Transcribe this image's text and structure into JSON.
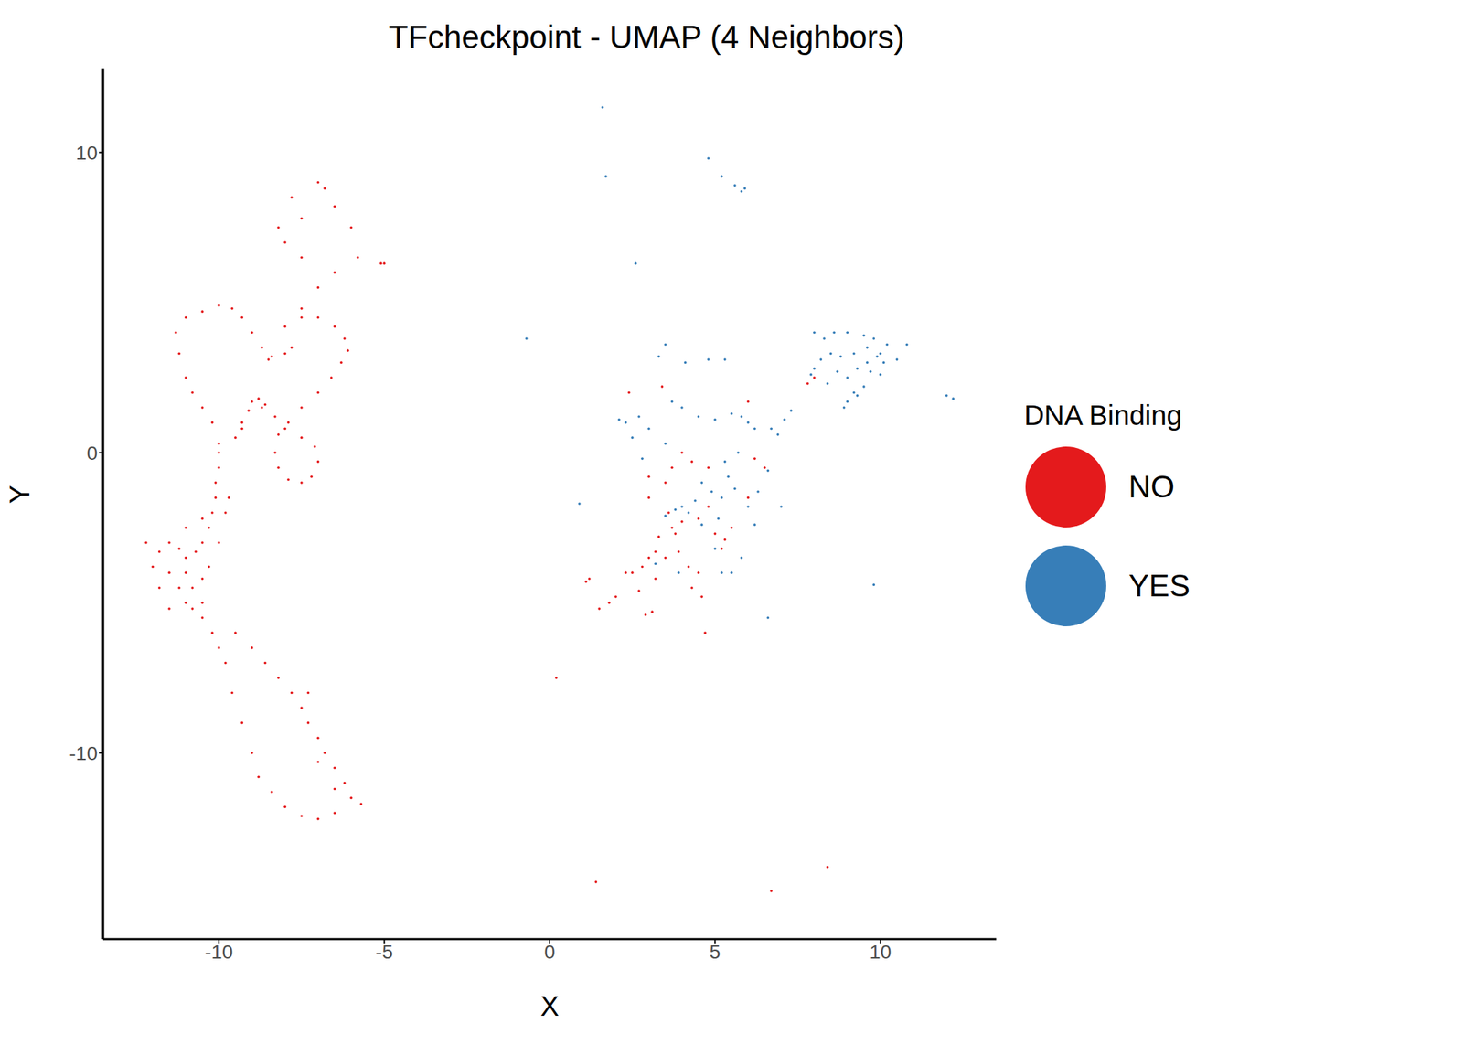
{
  "chart_data": {
    "type": "scatter",
    "title": "TFcheckpoint - UMAP (4 Neighbors)",
    "x_label": "X",
    "y_label": "Y",
    "legend_title": "DNA Binding",
    "legend": "right",
    "grid": false,
    "xlim": [
      -13.5,
      13.5
    ],
    "ylim": [
      -16.2,
      12.8
    ],
    "xticks": [
      -10,
      -5,
      0,
      5,
      10
    ],
    "yticks": [
      -10,
      0,
      10
    ],
    "marker": "circle",
    "series": [
      {
        "name": "NO",
        "color": "#E41A1C",
        "points": [
          [
            -7.5,
            4.8
          ],
          [
            -7.8,
            8.5
          ],
          [
            -7,
            9
          ],
          [
            -6.5,
            8.2
          ],
          [
            -6,
            7.5
          ],
          [
            -5.8,
            6.5
          ],
          [
            -5.1,
            6.3
          ],
          [
            -6.5,
            6
          ],
          [
            -7,
            5.5
          ],
          [
            -7.5,
            6.5
          ],
          [
            -8,
            7
          ],
          [
            -8.2,
            7.5
          ],
          [
            -7.5,
            7.8
          ],
          [
            -6.8,
            8.8
          ],
          [
            -10,
            4.9
          ],
          [
            -10.5,
            4.7
          ],
          [
            -11,
            4.5
          ],
          [
            -11.3,
            4
          ],
          [
            -11.2,
            3.3
          ],
          [
            -11,
            2.5
          ],
          [
            -10.8,
            2
          ],
          [
            -10.5,
            1.5
          ],
          [
            -10.2,
            1
          ],
          [
            -10,
            0.3
          ],
          [
            -9.6,
            4.8
          ],
          [
            -9.3,
            4.5
          ],
          [
            -9,
            4
          ],
          [
            -8.7,
            3.5
          ],
          [
            -8.4,
            3.2
          ],
          [
            -8,
            3.3
          ],
          [
            -7.8,
            3.5
          ],
          [
            -8,
            4.2
          ],
          [
            -7.5,
            4.5
          ],
          [
            -7,
            4.5
          ],
          [
            -6.5,
            4.2
          ],
          [
            -6.2,
            3.8
          ],
          [
            -6.1,
            3.4
          ],
          [
            -6.3,
            3
          ],
          [
            -6.6,
            2.5
          ],
          [
            -7,
            2
          ],
          [
            -7.5,
            1.5
          ],
          [
            -7.9,
            1
          ],
          [
            -8.2,
            0.6
          ],
          [
            -8.3,
            0
          ],
          [
            -8.2,
            -0.5
          ],
          [
            -7.9,
            -0.9
          ],
          [
            -7.5,
            -1
          ],
          [
            -7.2,
            -0.8
          ],
          [
            -7,
            -0.3
          ],
          [
            -7.1,
            0.2
          ],
          [
            -7.5,
            0.5
          ],
          [
            -8,
            0.8
          ],
          [
            -8.3,
            1.2
          ],
          [
            -8.6,
            1.6
          ],
          [
            -8.8,
            1.8
          ],
          [
            -9,
            1.7
          ],
          [
            -9.1,
            1.4
          ],
          [
            -9.3,
            1
          ],
          [
            -9.5,
            0.5
          ],
          [
            -8.7,
            1.5
          ],
          [
            -9.3,
            0.8
          ],
          [
            -10,
            0
          ],
          [
            -10,
            -0.5
          ],
          [
            -10.1,
            -1
          ],
          [
            -10.1,
            -1.5
          ],
          [
            -10.2,
            -2
          ],
          [
            -10.3,
            -2.5
          ],
          [
            -10.5,
            -3
          ],
          [
            -10.7,
            -3.3
          ],
          [
            -11,
            -3.5
          ],
          [
            -11.2,
            -3.2
          ],
          [
            -11.5,
            -3
          ],
          [
            -11.8,
            -3.3
          ],
          [
            -11.5,
            -4
          ],
          [
            -11.2,
            -4.5
          ],
          [
            -11,
            -5
          ],
          [
            -10.8,
            -5.2
          ],
          [
            -10.5,
            -5
          ],
          [
            -11.5,
            -5.2
          ],
          [
            -11.8,
            -4.5
          ],
          [
            -12,
            -3.8
          ],
          [
            -12.2,
            -3
          ],
          [
            -11,
            -2.5
          ],
          [
            -10.5,
            -2.2
          ],
          [
            -11,
            -4
          ],
          [
            -10.8,
            -4.5
          ],
          [
            -10.5,
            -4.2
          ],
          [
            -10.3,
            -3.8
          ],
          [
            -10,
            -3
          ],
          [
            -9.8,
            -2
          ],
          [
            -9.7,
            -1.5
          ],
          [
            -10.5,
            -5.5
          ],
          [
            -10.2,
            -6
          ],
          [
            -10,
            -6.5
          ],
          [
            -9.8,
            -7
          ],
          [
            -9.6,
            -8
          ],
          [
            -9.3,
            -9
          ],
          [
            -9,
            -10
          ],
          [
            -8.8,
            -10.8
          ],
          [
            -8.4,
            -11.3
          ],
          [
            -8,
            -11.8
          ],
          [
            -7.5,
            -12.1
          ],
          [
            -7,
            -12.2
          ],
          [
            -6.5,
            -12
          ],
          [
            -6,
            -11.5
          ],
          [
            -5.7,
            -11.7
          ],
          [
            -6.2,
            -11
          ],
          [
            -6.5,
            -10.5
          ],
          [
            -6.8,
            -10
          ],
          [
            -7,
            -9.5
          ],
          [
            -7.3,
            -9
          ],
          [
            -7.5,
            -8.5
          ],
          [
            -7.8,
            -8
          ],
          [
            -8.2,
            -7.5
          ],
          [
            -8.6,
            -7
          ],
          [
            -9,
            -6.5
          ],
          [
            -9.5,
            -6
          ],
          [
            -7.3,
            -8
          ],
          [
            -7,
            -10.3
          ],
          [
            -6.5,
            -11.2
          ],
          [
            -5,
            6.3
          ],
          [
            -8.5,
            3.1
          ],
          [
            1.5,
            -5.2
          ],
          [
            1.8,
            -5
          ],
          [
            2,
            -4.8
          ],
          [
            1.1,
            -4.3
          ],
          [
            1.2,
            -4.2
          ],
          [
            2.3,
            -4
          ],
          [
            2.5,
            -4
          ],
          [
            2.8,
            -3.8
          ],
          [
            3,
            -3.5
          ],
          [
            3.2,
            -3.3
          ],
          [
            3.5,
            -3.5
          ],
          [
            3.7,
            -2.5
          ],
          [
            3.8,
            -2.7
          ],
          [
            4,
            -2.3
          ],
          [
            3.6,
            -2
          ],
          [
            3.3,
            -2.8
          ],
          [
            4.2,
            -3.8
          ],
          [
            4.5,
            -4
          ],
          [
            4.3,
            -4.5
          ],
          [
            4.6,
            -4.8
          ],
          [
            3.9,
            -3.3
          ],
          [
            3,
            -1.5
          ],
          [
            3.5,
            -1
          ],
          [
            3.7,
            -0.5
          ],
          [
            4,
            0
          ],
          [
            4.3,
            -0.3
          ],
          [
            2.9,
            -5.4
          ],
          [
            3.1,
            -5.3
          ],
          [
            5,
            -2.7
          ],
          [
            5.3,
            -2.9
          ],
          [
            5.5,
            -2.5
          ],
          [
            6,
            -1.5
          ],
          [
            6.5,
            -0.5
          ],
          [
            2.4,
            2
          ],
          [
            3,
            -0.8
          ],
          [
            4.8,
            -1.8
          ],
          [
            4.5,
            -2.2
          ],
          [
            3.2,
            -4.2
          ],
          [
            2.7,
            -4.6
          ],
          [
            4.7,
            -6
          ],
          [
            5.2,
            -3.2
          ],
          [
            6,
            1.7
          ],
          [
            6.2,
            -0.2
          ],
          [
            8,
            2.5
          ],
          [
            7.8,
            2.3
          ],
          [
            1.4,
            -14.3
          ],
          [
            6.7,
            -14.6
          ],
          [
            8.4,
            -13.8
          ],
          [
            0.2,
            -7.5
          ],
          [
            4.8,
            -0.5
          ],
          [
            3.4,
            2.2
          ]
        ]
      },
      {
        "name": "YES",
        "color": "#377EB8",
        "points": [
          [
            8,
            4
          ],
          [
            8.3,
            3.8
          ],
          [
            8.6,
            4
          ],
          [
            9,
            4
          ],
          [
            9.5,
            3.9
          ],
          [
            9.8,
            3.8
          ],
          [
            10.2,
            3.6
          ],
          [
            10.8,
            3.6
          ],
          [
            9.6,
            3.5
          ],
          [
            9.2,
            3.3
          ],
          [
            8.8,
            3.2
          ],
          [
            8.5,
            3.3
          ],
          [
            8.2,
            3.1
          ],
          [
            8,
            2.8
          ],
          [
            8.7,
            2.7
          ],
          [
            9,
            2.5
          ],
          [
            9.3,
            2.8
          ],
          [
            9.6,
            3
          ],
          [
            9.9,
            3.2
          ],
          [
            10,
            2.6
          ],
          [
            9.5,
            2.2
          ],
          [
            9.2,
            2
          ],
          [
            9,
            1.7
          ],
          [
            9.7,
            2.7
          ],
          [
            10.1,
            3
          ],
          [
            8.4,
            2.3
          ],
          [
            8.9,
            1.5
          ],
          [
            10,
            3.3
          ],
          [
            12.2,
            1.8
          ],
          [
            12,
            1.9
          ],
          [
            5.9,
            8.8
          ],
          [
            5.8,
            8.7
          ],
          [
            5.6,
            8.9
          ],
          [
            5.2,
            9.2
          ],
          [
            4.8,
            9.8
          ],
          [
            1.6,
            11.5
          ],
          [
            1.7,
            9.2
          ],
          [
            2.6,
            6.3
          ],
          [
            -0.7,
            3.8
          ],
          [
            0.9,
            -1.7
          ],
          [
            9.8,
            -4.4
          ],
          [
            6.6,
            -5.5
          ],
          [
            3.5,
            3.6
          ],
          [
            3.3,
            3.2
          ],
          [
            4.1,
            3
          ],
          [
            4.8,
            3.1
          ],
          [
            5.3,
            3.1
          ],
          [
            2.1,
            1.1
          ],
          [
            2.3,
            1
          ],
          [
            2.7,
            1.2
          ],
          [
            3,
            0.8
          ],
          [
            3.5,
            0.3
          ],
          [
            3.7,
            1.7
          ],
          [
            4,
            1.5
          ],
          [
            4.5,
            1.2
          ],
          [
            5,
            1.1
          ],
          [
            5.5,
            1.3
          ],
          [
            6,
            1
          ],
          [
            6.2,
            0.8
          ],
          [
            6.7,
            0.8
          ],
          [
            6.9,
            0.6
          ],
          [
            7.1,
            1.1
          ],
          [
            7.3,
            1.4
          ],
          [
            5.8,
            1.2
          ],
          [
            4.6,
            -1
          ],
          [
            4.9,
            -1.3
          ],
          [
            5.2,
            -1.5
          ],
          [
            5.4,
            -0.8
          ],
          [
            5.6,
            -1.2
          ],
          [
            6,
            -1.8
          ],
          [
            6.3,
            -1.3
          ],
          [
            7,
            -1.8
          ],
          [
            4,
            -1.8
          ],
          [
            4.2,
            -2
          ],
          [
            3.8,
            -1.9
          ],
          [
            3.5,
            -2.1
          ],
          [
            4.6,
            -2.4
          ],
          [
            5.1,
            -2.2
          ],
          [
            5,
            -3.2
          ],
          [
            5.8,
            -3.5
          ],
          [
            6.2,
            -2.4
          ],
          [
            4.4,
            -1.6
          ],
          [
            6.6,
            -0.6
          ],
          [
            5.7,
            0
          ],
          [
            5.3,
            -0.3
          ],
          [
            3.9,
            -4
          ],
          [
            5.2,
            -4
          ],
          [
            5.5,
            -4
          ],
          [
            3.2,
            -3.7
          ],
          [
            2.8,
            -0.2
          ],
          [
            2.5,
            0.5
          ],
          [
            7.9,
            2.6
          ],
          [
            10.5,
            3.1
          ],
          [
            9.3,
            1.9
          ]
        ]
      }
    ]
  }
}
